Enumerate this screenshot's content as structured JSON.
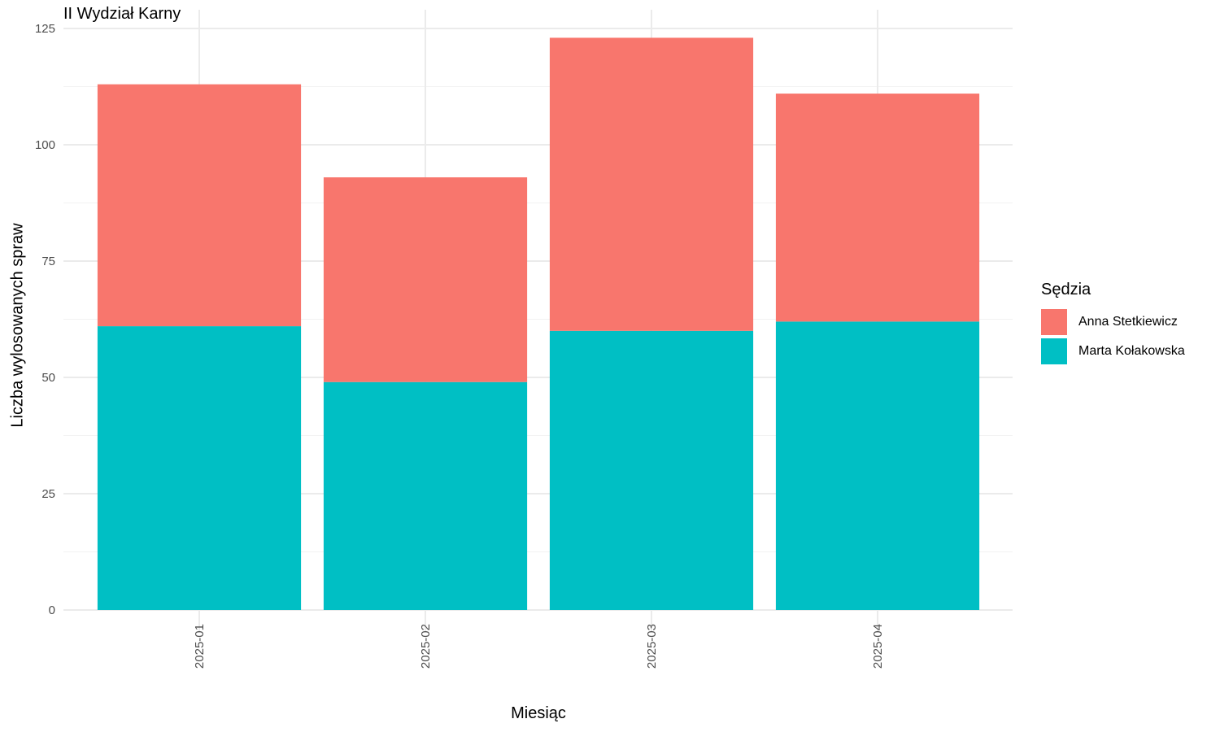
{
  "chart_data": {
    "type": "bar",
    "stacked": true,
    "title": "II Wydział Karny",
    "xlabel": "Miesiąc",
    "ylabel": "Liczba wylosowanych spraw",
    "categories": [
      "2025-01",
      "2025-02",
      "2025-03",
      "2025-04"
    ],
    "ylim": [
      0,
      125
    ],
    "yticks": [
      0,
      25,
      50,
      75,
      100,
      125
    ],
    "grid": true,
    "legend": {
      "title": "Sędzia",
      "position": "right"
    },
    "series": [
      {
        "name": "Marta Kołakowska",
        "color": "#00BFC4",
        "values": [
          61,
          49,
          60,
          62
        ]
      },
      {
        "name": "Anna Stetkiewicz",
        "color": "#F8766D",
        "values": [
          52,
          44,
          63,
          49
        ]
      }
    ],
    "legend_order": [
      "Anna Stetkiewicz",
      "Marta Kołakowska"
    ]
  }
}
